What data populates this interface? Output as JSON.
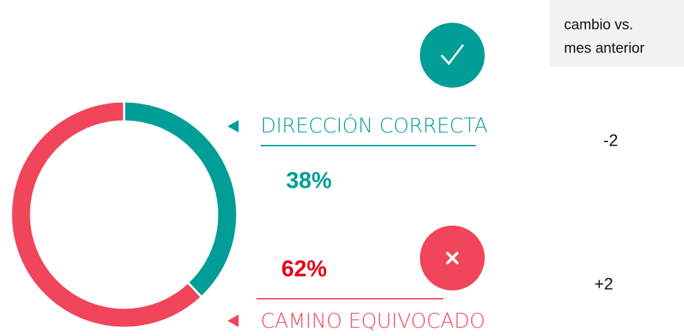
{
  "chart_data": {
    "type": "donut",
    "categories": [
      "DIRECCIÓN CORRECTA",
      "CAMINO EQUIVOCADO"
    ],
    "values": [
      38,
      62
    ],
    "value_labels": [
      "38%",
      "62%"
    ],
    "colors": [
      "#009e96",
      "#f0455a"
    ],
    "value_label_colors": [
      "#009e96",
      "#e5001c"
    ],
    "change_header": [
      "cambio vs.",
      "mes anterior"
    ],
    "changes": [
      -2,
      2
    ],
    "change_labels": [
      "-2",
      "+2"
    ]
  }
}
